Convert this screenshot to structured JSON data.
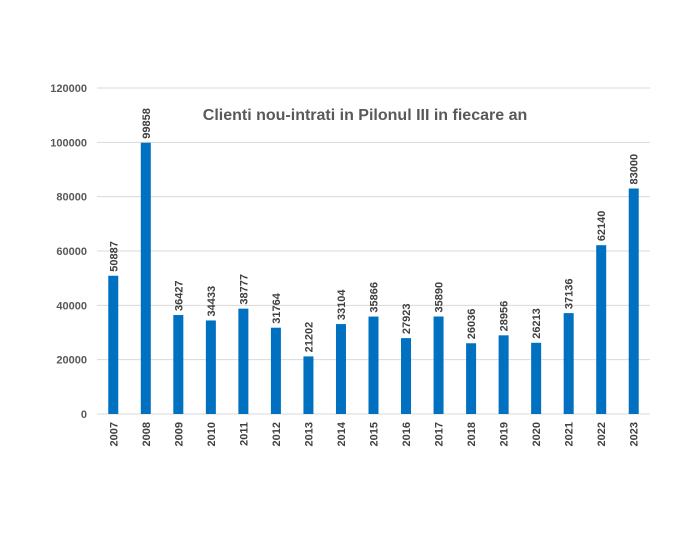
{
  "chart_data": {
    "type": "bar",
    "title": "Clienti nou-intrati in Pilonul III in fiecare an",
    "xlabel": "",
    "ylabel": "",
    "categories": [
      "2007",
      "2008",
      "2009",
      "2010",
      "2011",
      "2012",
      "2013",
      "2014",
      "2015",
      "2016",
      "2017",
      "2018",
      "2019",
      "2020",
      "2021",
      "2022",
      "2023"
    ],
    "values": [
      50887,
      99858,
      36427,
      34433,
      38777,
      31764,
      21202,
      33104,
      35866,
      27923,
      35890,
      26036,
      28956,
      26213,
      37136,
      62140,
      83000
    ],
    "data_labels": [
      "50887",
      "99858",
      "36427",
      "34433",
      "38777",
      "31764",
      "21202",
      "33104",
      "35866",
      "27923",
      "35890",
      "26036",
      "28956",
      "26213",
      "37136",
      "62140",
      "83000"
    ],
    "y_ticks": [
      0,
      20000,
      40000,
      60000,
      80000,
      100000,
      120000
    ],
    "y_tick_labels": [
      "0",
      "20000",
      "40000",
      "60000",
      "80000",
      "100000",
      "120000"
    ],
    "ylim": [
      0,
      120000
    ],
    "grid": true,
    "legend": "none",
    "bar_color": "#0070C0",
    "grid_color": "#D9D9D9"
  }
}
